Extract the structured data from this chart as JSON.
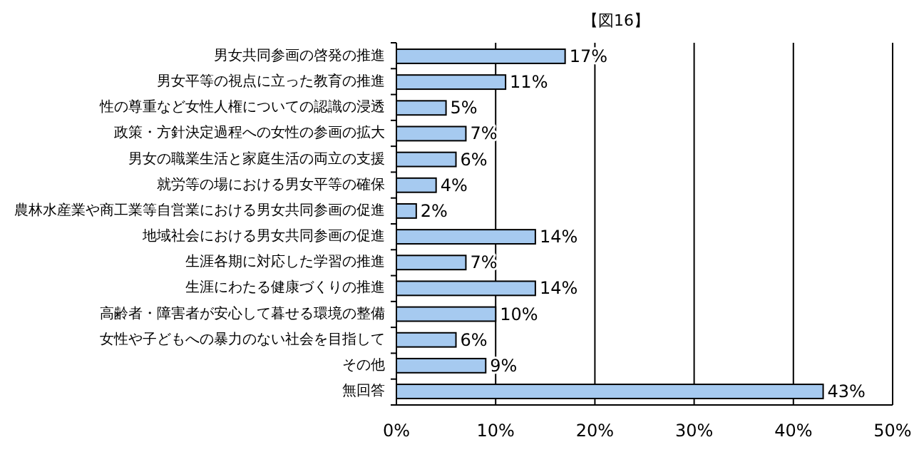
{
  "chart_data": {
    "type": "bar",
    "orientation": "horizontal",
    "title": "【図16】",
    "categories": [
      "男女共同参画の啓発の推進",
      "男女平等の視点に立った教育の推進",
      "性の尊重など女性人権についての認識の浸透",
      "政策・方針決定過程への女性の参画の拡大",
      "男女の職業生活と家庭生活の両立の支援",
      "就労等の場における男女平等の確保",
      "農林水産業や商工業等自営業における男女共同参画の促進",
      "地域社会における男女共同参画の促進",
      "生涯各期に対応した学習の推進",
      "生涯にわたる健康づくりの推進",
      "高齢者・障害者が安心して暮せる環境の整備",
      "女性や子どもへの暴力のない社会を目指して",
      "その他",
      "無回答"
    ],
    "values": [
      17,
      11,
      5,
      7,
      6,
      4,
      2,
      14,
      7,
      14,
      10,
      6,
      9,
      43
    ],
    "color": "#a6caf0",
    "xlim": [
      0,
      50
    ],
    "xticks": [
      {
        "value": 0,
        "label": "0%"
      },
      {
        "value": 10,
        "label": "10%"
      },
      {
        "value": 20,
        "label": "20%"
      },
      {
        "value": 30,
        "label": "30%"
      },
      {
        "value": 40,
        "label": "40%"
      },
      {
        "value": 50,
        "label": "50%"
      }
    ],
    "value_labels": [
      "17%",
      "11%",
      "5%",
      "7%",
      "6%",
      "4%",
      "2%",
      "14%",
      "7%",
      "14%",
      "10%",
      "6%",
      "9%",
      "43%"
    ],
    "grid": "x"
  }
}
